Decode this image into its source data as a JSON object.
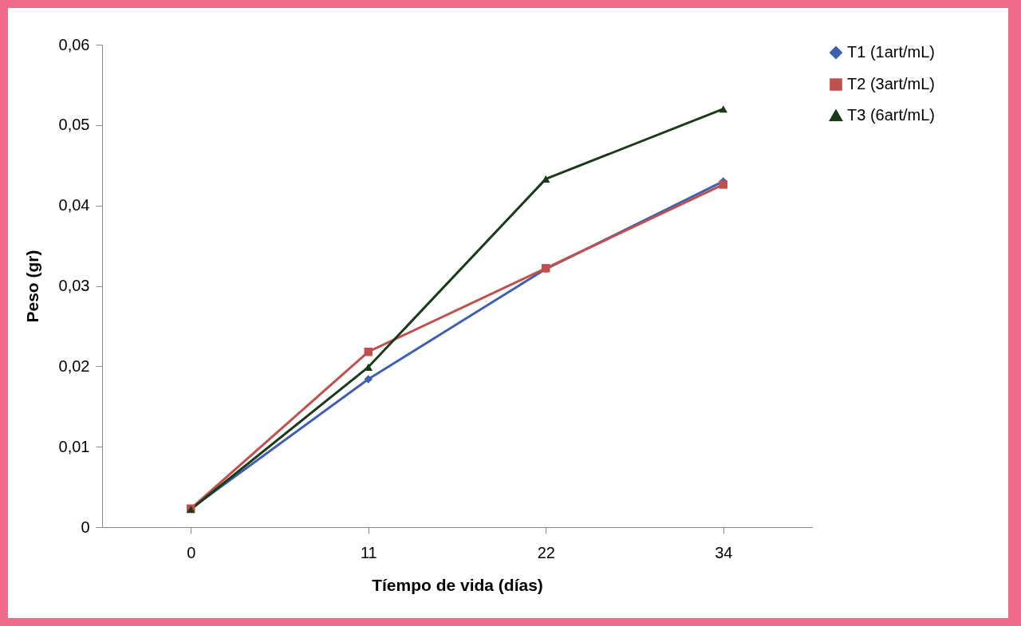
{
  "chart_data": {
    "type": "line",
    "xlabel": "Tíempo de vida (días)",
    "ylabel": "Peso (gr)",
    "categories": [
      "0",
      "11",
      "22",
      "34"
    ],
    "ylim": [
      0,
      0.06
    ],
    "yticks": [
      0,
      {
        "value": 0.01,
        "label": "0,01"
      },
      {
        "value": 0.02,
        "label": "0,02"
      },
      {
        "value": 0.03,
        "label": "0,03"
      },
      {
        "value": 0.04,
        "label": "0,04"
      },
      {
        "value": 0.05,
        "label": "0,05"
      },
      {
        "value": 0.06,
        "label": "0,06"
      }
    ],
    "legend": "right",
    "grid": false,
    "line_style": "solid",
    "series": [
      {
        "name": "T1 (1art/mL)",
        "color": "#3f5fb0",
        "marker": "diamond",
        "values": [
          0.0023,
          0.0184,
          0.0321,
          0.043
        ]
      },
      {
        "name": "T2 (3art/mL)",
        "color": "#c0504d",
        "marker": "square",
        "values": [
          0.0023,
          0.0218,
          0.0322,
          0.0426
        ]
      },
      {
        "name": "T3 (6art/mL)",
        "color": "#1a3a1a",
        "marker": "triangle",
        "values": [
          0.0022,
          0.0199,
          0.0433,
          0.052
        ]
      }
    ]
  }
}
